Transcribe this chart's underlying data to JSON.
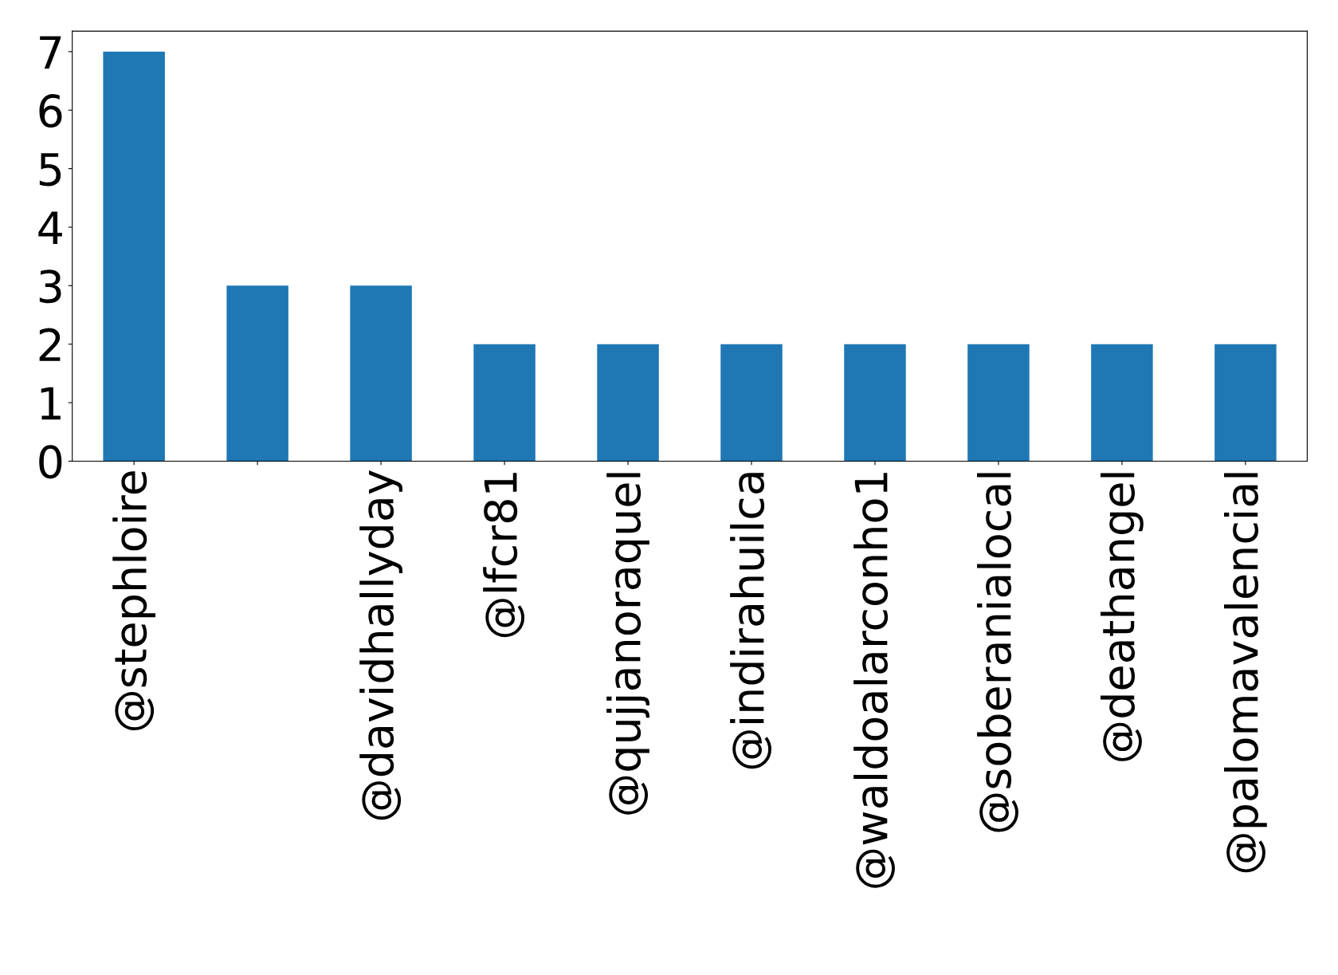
{
  "chart_data": {
    "type": "bar",
    "categories": [
      "@stephloire",
      null,
      "@davidhallyday",
      "@lfcr81",
      "@qujjanoraquel",
      "@indirahuilca",
      "@waldoalarconho1",
      "@soberanialocal",
      "@deathangel",
      "@palomavalencial"
    ],
    "values": [
      7,
      3,
      3,
      2,
      2,
      2,
      2,
      2,
      2,
      2
    ],
    "color": "#1f77b4",
    "ylim": [
      0,
      7.35
    ],
    "yticks": [
      0,
      1,
      2,
      3,
      4,
      5,
      6,
      7
    ],
    "grid": false,
    "legend": false
  }
}
